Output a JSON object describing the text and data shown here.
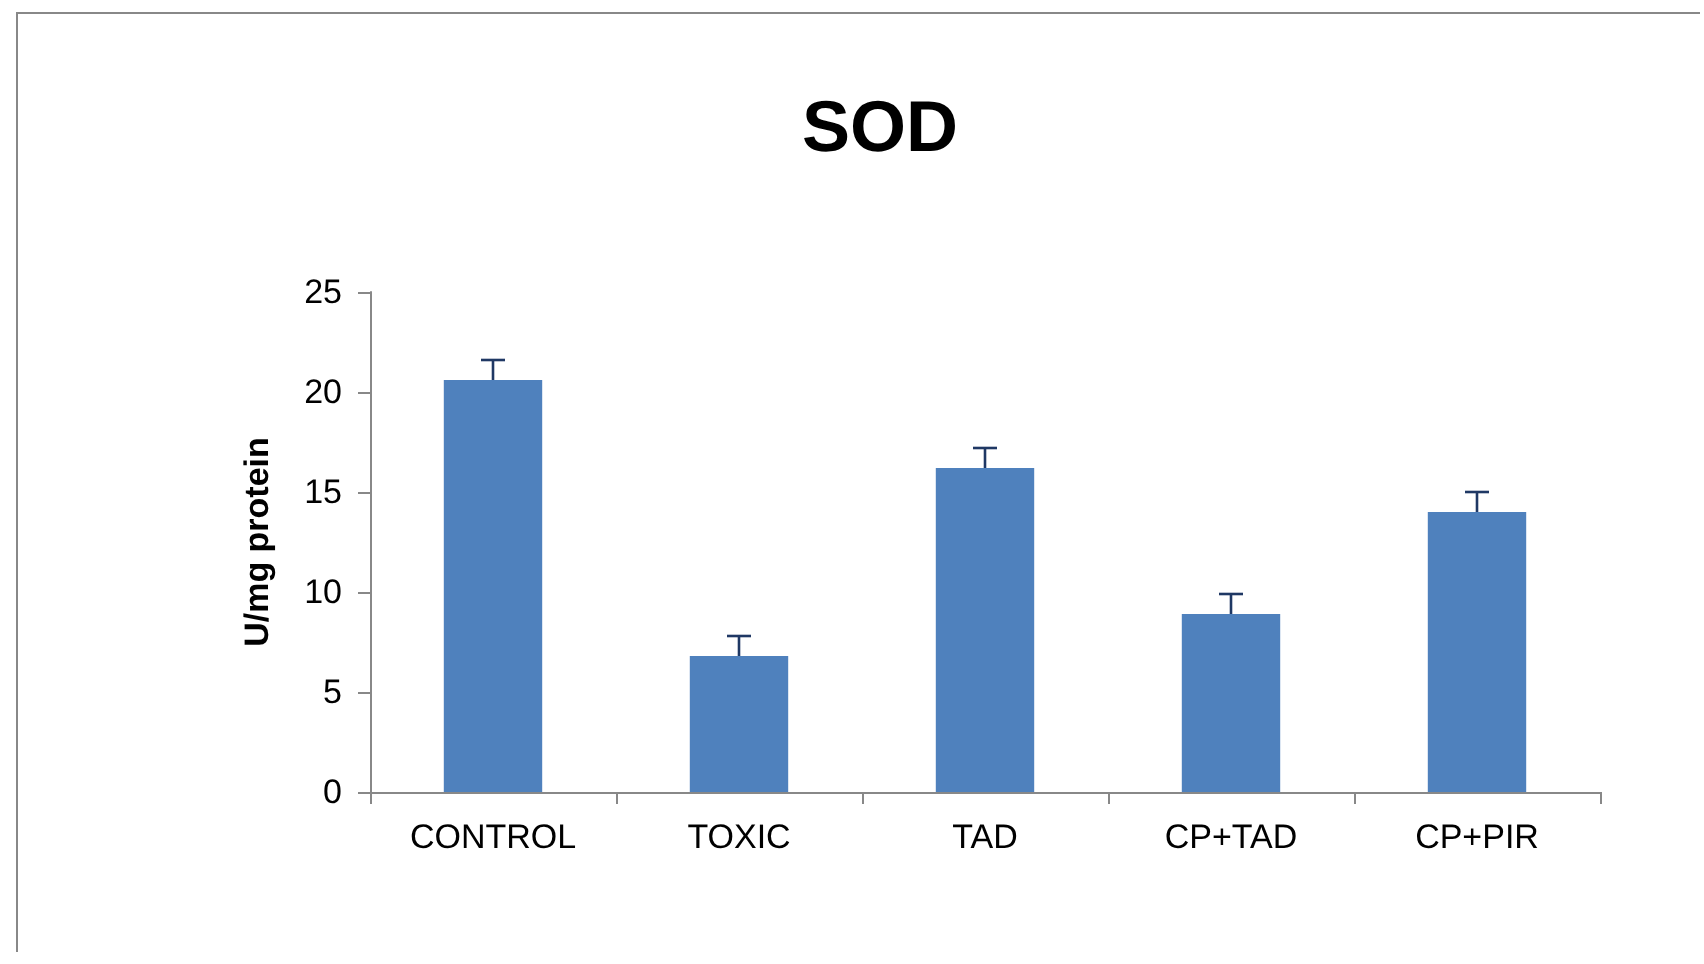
{
  "chart_data": {
    "type": "bar",
    "title": "SOD",
    "ylabel": "U/mg protein",
    "categories": [
      "CONTROL",
      "TOXIC",
      "TAD",
      "CP+TAD",
      "CP+PIR"
    ],
    "values": [
      20.6,
      6.8,
      16.2,
      8.9,
      14.0
    ],
    "errors": [
      1.0,
      1.0,
      1.0,
      1.0,
      1.0
    ],
    "color": "#4f81bd",
    "ylim": [
      0,
      25
    ],
    "yticks": [
      0,
      5,
      10,
      15,
      20,
      25
    ],
    "grid": false
  }
}
